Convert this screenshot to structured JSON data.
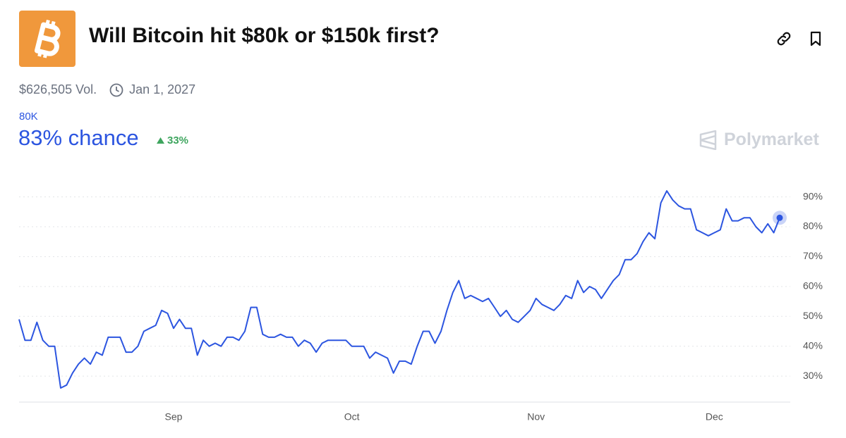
{
  "header": {
    "title": "Will Bitcoin hit $80k or $150k first?",
    "volume": "$626,505 Vol.",
    "end_date": "Jan 1, 2027",
    "outcome": "80K",
    "chance": "83% chance",
    "change": "33%",
    "brand": "Polymarket"
  },
  "chart_data": {
    "type": "line",
    "categories": [
      null,
      null,
      null,
      null,
      null,
      null,
      null,
      null,
      null,
      null,
      null,
      null,
      null,
      null,
      null,
      null,
      null,
      null,
      null,
      null,
      null,
      null,
      null,
      null,
      null,
      null,
      "Sep",
      null,
      null,
      null,
      null,
      null,
      null,
      null,
      null,
      null,
      null,
      null,
      null,
      null,
      null,
      null,
      null,
      null,
      null,
      null,
      null,
      null,
      null,
      null,
      null,
      null,
      null,
      null,
      null,
      null,
      "Oct",
      null,
      null,
      null,
      null,
      null,
      null,
      null,
      null,
      null,
      null,
      null,
      null,
      null,
      null,
      null,
      null,
      null,
      null,
      null,
      null,
      null,
      null,
      null,
      null,
      null,
      null,
      null,
      null,
      null,
      null,
      "Nov",
      null,
      null,
      null,
      null,
      null,
      null,
      null,
      null,
      null,
      null,
      null,
      null,
      null,
      null,
      null,
      null,
      null,
      null,
      null,
      null,
      null,
      null,
      null,
      null,
      null,
      null,
      null,
      null,
      null,
      "Dec",
      null,
      null,
      null,
      null,
      null,
      null,
      null,
      null,
      null,
      null,
      null
    ],
    "series": [
      {
        "name": "80K",
        "color": "#2c55e0",
        "values": [
          49,
          42,
          42,
          48,
          42,
          40,
          40,
          26,
          27,
          31,
          34,
          36,
          34,
          38,
          37,
          43,
          43,
          43,
          38,
          38,
          40,
          45,
          46,
          47,
          52,
          51,
          46,
          49,
          46,
          46,
          37,
          42,
          40,
          41,
          40,
          43,
          43,
          42,
          45,
          53,
          53,
          44,
          43,
          43,
          44,
          43,
          43,
          40,
          42,
          41,
          38,
          41,
          42,
          42,
          42,
          42,
          40,
          40,
          40,
          36,
          38,
          37,
          36,
          31,
          35,
          35,
          34,
          40,
          45,
          45,
          41,
          45,
          52,
          58,
          62,
          56,
          57,
          56,
          55,
          56,
          53,
          50,
          52,
          49,
          48,
          50,
          52,
          56,
          54,
          53,
          52,
          54,
          57,
          56,
          62,
          58,
          60,
          59,
          56,
          59,
          62,
          64,
          69,
          69,
          71,
          75,
          78,
          76,
          88,
          92,
          89,
          87,
          86,
          86,
          79,
          78,
          77,
          78,
          79,
          86,
          82,
          82,
          83,
          83,
          80,
          78,
          81,
          78,
          83
        ]
      }
    ],
    "ylim": [
      22,
      98
    ],
    "yticks": [
      {
        "value": 30,
        "label": "30%"
      },
      {
        "value": 40,
        "label": "40%"
      },
      {
        "value": 50,
        "label": "50%"
      },
      {
        "value": 60,
        "label": "60%"
      },
      {
        "value": 70,
        "label": "70%"
      },
      {
        "value": 80,
        "label": "80%"
      },
      {
        "value": 90,
        "label": "90%"
      }
    ],
    "grid": true
  }
}
